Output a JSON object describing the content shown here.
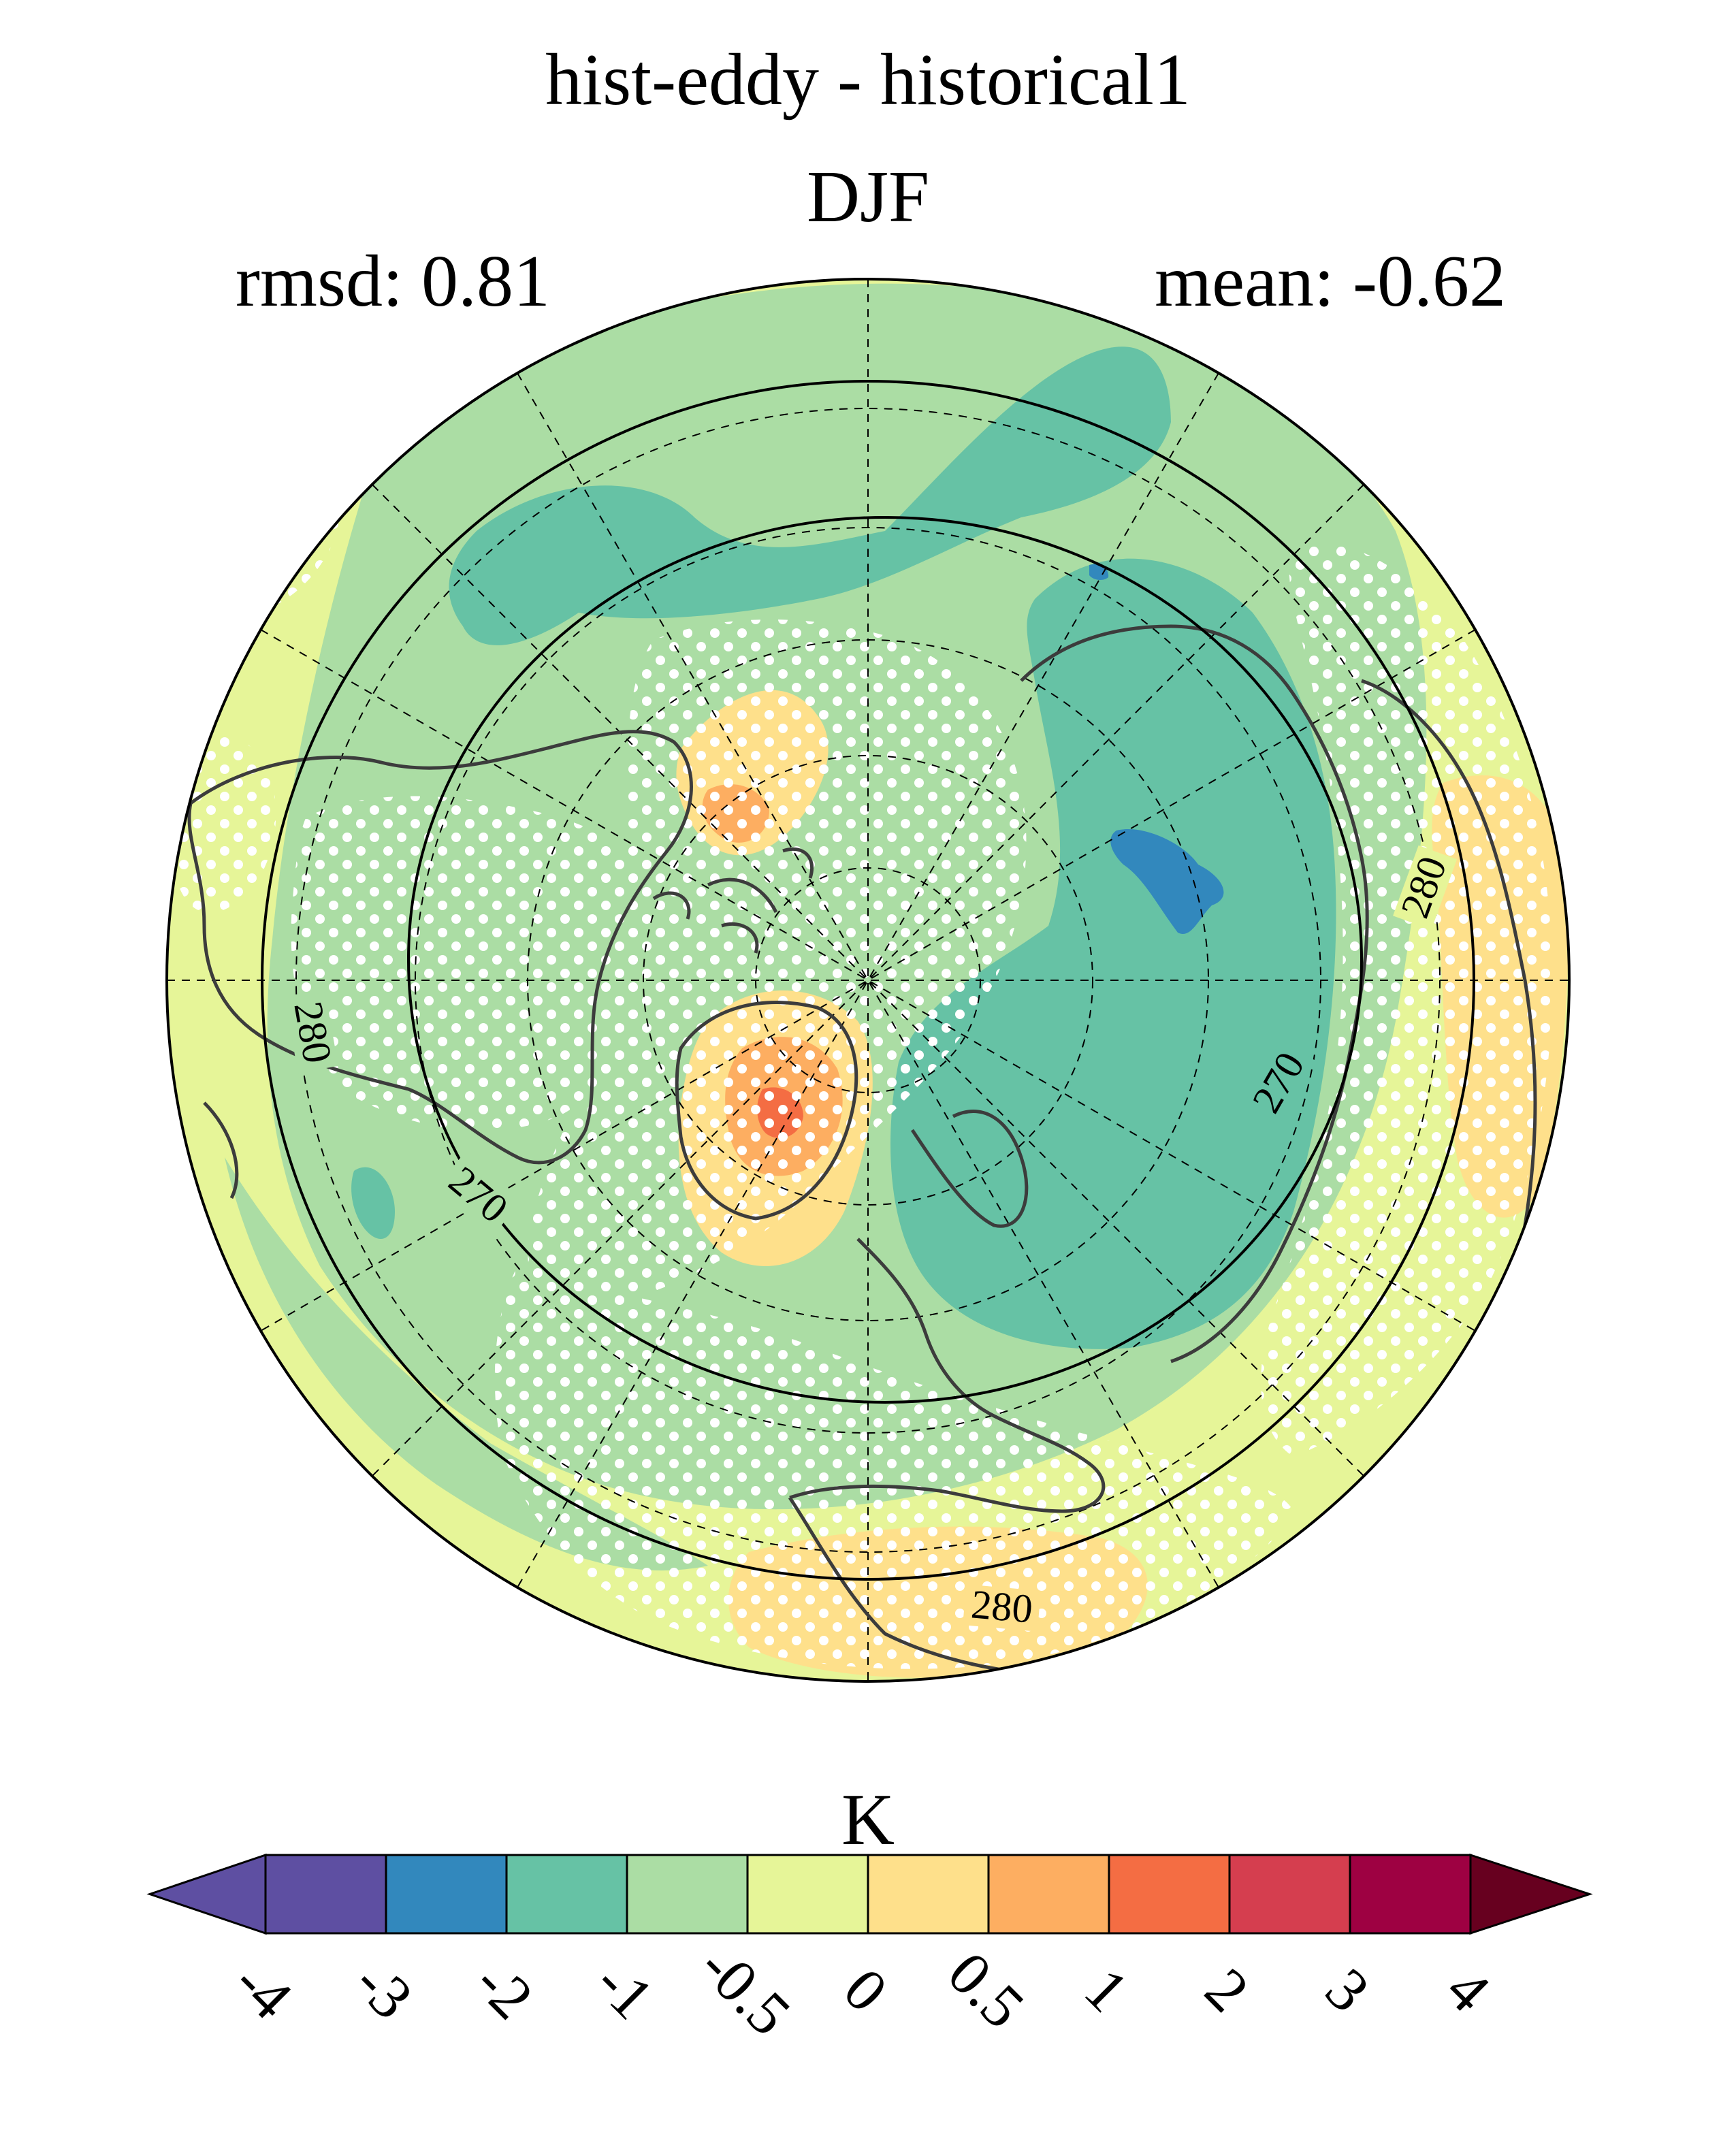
{
  "figure": {
    "title": "hist-eddy - historical1",
    "season": "DJF",
    "rmsd_text": "rmsd: 0.81",
    "mean_text": "mean: -0.62"
  },
  "map": {
    "projection": "north-polar-stereographic",
    "contour_labels": [
      "280",
      "280",
      "270",
      "270",
      "280"
    ],
    "stippling": "white dots mark significance",
    "colors": {
      "neg4": "#5e4fa2",
      "neg3": "#3288bd",
      "neg2": "#66c2a5",
      "neg1": "#abdda4",
      "neg05": "#e6f598",
      "pos0": "#fee08b",
      "pos05": "#fdae61",
      "pos1": "#f46d43",
      "pos2": "#d53e4f",
      "pos3": "#9e0142"
    }
  },
  "colorbar": {
    "unit": "K",
    "tick_labels": [
      "-4",
      "-3",
      "-2",
      "-1",
      "-0.5",
      "0",
      "0.5",
      "1",
      "2",
      "3",
      "4"
    ],
    "segment_colors": [
      "#5e4fa2",
      "#5e4fa2",
      "#3288bd",
      "#66c2a5",
      "#abdda4",
      "#e6f598",
      "#fee08b",
      "#fdae61",
      "#f46d43",
      "#d53e4f",
      "#9e0142",
      "#67001f"
    ]
  }
}
